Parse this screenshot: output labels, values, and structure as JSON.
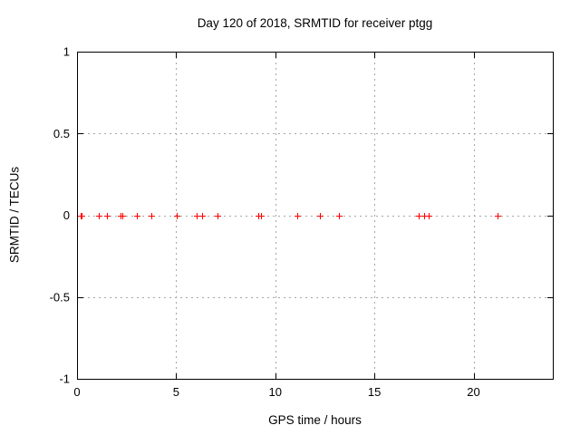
{
  "chart_data": {
    "type": "scatter",
    "title": "Day 120 of 2018, SRMTID for receiver ptgg",
    "xlabel": "GPS time / hours",
    "ylabel": "SRMTID / TECUs",
    "xlim": [
      0,
      24
    ],
    "ylim": [
      -1,
      1
    ],
    "xticks": [
      0,
      5,
      10,
      15,
      20
    ],
    "xtick_labels": [
      "0",
      "5",
      "10",
      "15",
      "20"
    ],
    "yticks": [
      1,
      0.5,
      0,
      -0.5,
      -1
    ],
    "ytick_labels": [
      "1",
      "0.5",
      "0",
      "-0.5",
      "-1"
    ],
    "grid": true,
    "legend_position": "none",
    "marker": "plus",
    "marker_color": "#ff0000",
    "grid_color": "#a6a6a6",
    "axis_color": "#000000",
    "series": [
      {
        "name": "SRMTID",
        "x": [
          0.18,
          0.25,
          1.1,
          1.5,
          2.2,
          2.3,
          3.0,
          3.75,
          5.05,
          6.05,
          6.3,
          7.1,
          9.15,
          9.3,
          11.1,
          12.25,
          13.2,
          17.25,
          17.5,
          17.75,
          21.2
        ],
        "y": [
          0,
          0,
          0,
          0,
          0,
          0,
          0,
          0,
          0,
          0,
          0,
          0,
          0,
          0,
          0,
          0,
          0,
          0,
          0,
          0,
          0
        ]
      }
    ]
  }
}
